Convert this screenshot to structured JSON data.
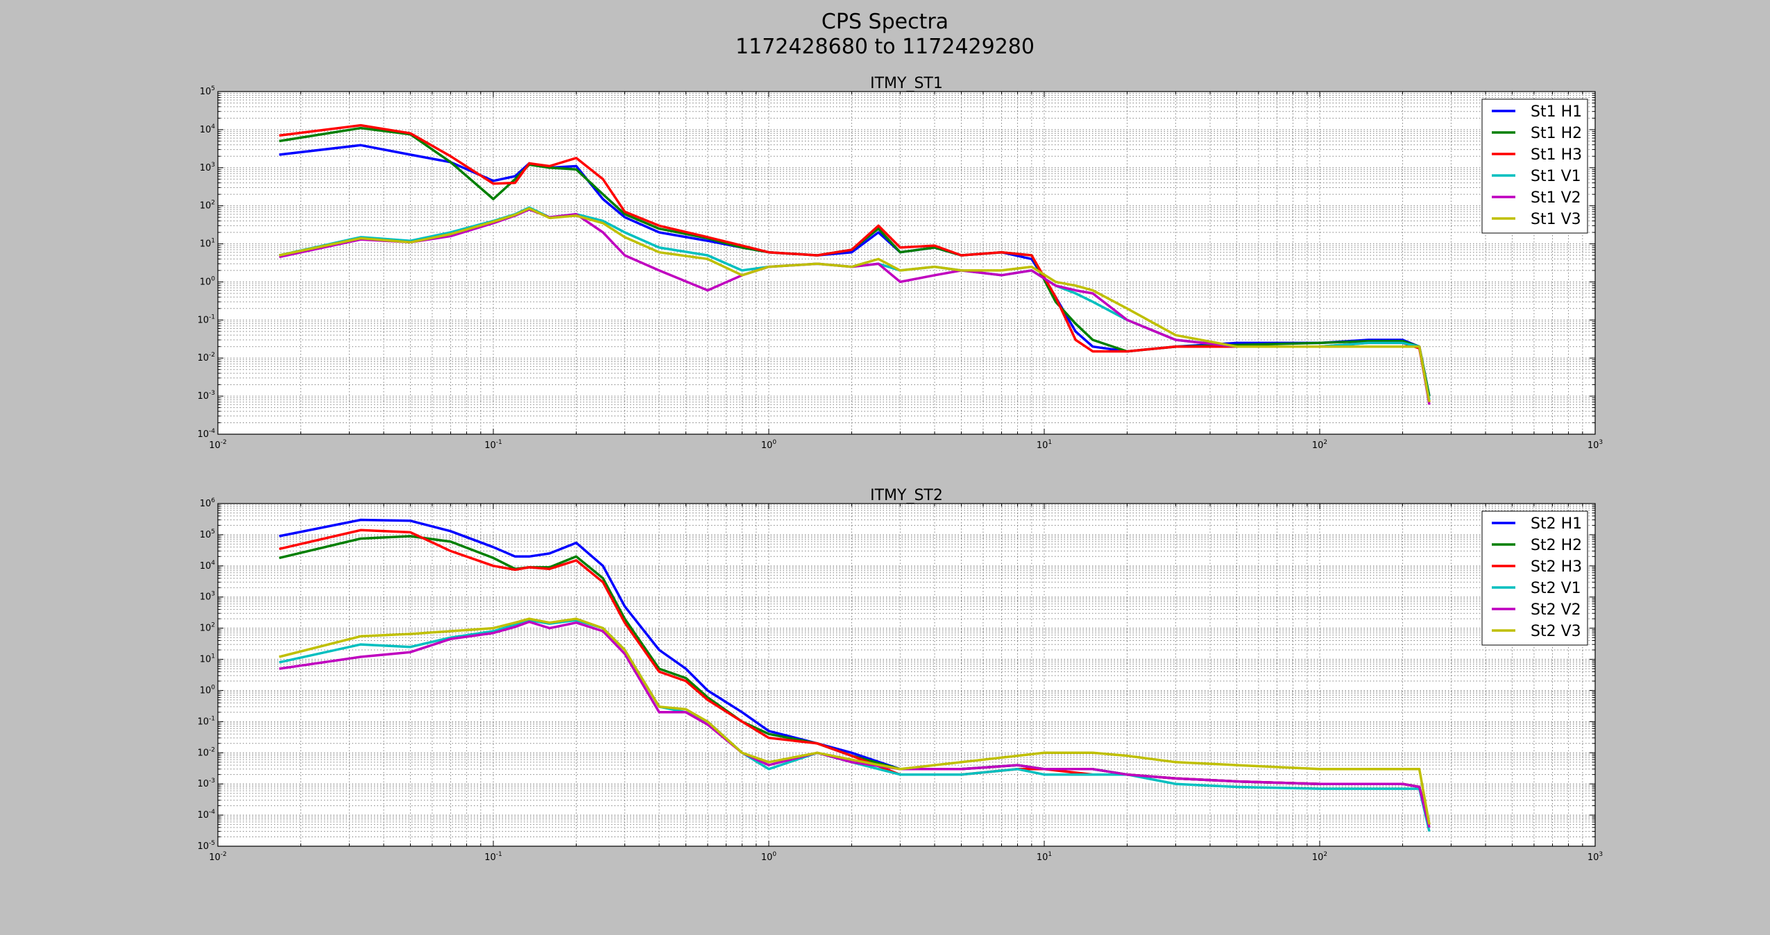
{
  "figure": {
    "title_line1": "CPS Spectra",
    "title_line2": "1172428680 to 1172429280"
  },
  "chart_data": [
    {
      "type": "line",
      "title": "ITMY_ST1",
      "xscale": "log",
      "yscale": "log",
      "xlim": [
        0.01,
        1000
      ],
      "ylim": [
        0.0001,
        100000
      ],
      "xlabel": "",
      "ylabel": "",
      "grid": true,
      "legend_position": "top-right",
      "xticks": [
        {
          "base": "10",
          "exp": "-2"
        },
        {
          "base": "10",
          "exp": "-1"
        },
        {
          "base": "10",
          "exp": "0"
        },
        {
          "base": "10",
          "exp": "1"
        },
        {
          "base": "10",
          "exp": "2"
        },
        {
          "base": "10",
          "exp": "3"
        }
      ],
      "yticks": [
        {
          "base": "10",
          "exp": "-4"
        },
        {
          "base": "10",
          "exp": "-3"
        },
        {
          "base": "10",
          "exp": "-2"
        },
        {
          "base": "10",
          "exp": "-1"
        },
        {
          "base": "10",
          "exp": "0"
        },
        {
          "base": "10",
          "exp": "1"
        },
        {
          "base": "10",
          "exp": "2"
        },
        {
          "base": "10",
          "exp": "3"
        },
        {
          "base": "10",
          "exp": "4"
        },
        {
          "base": "10",
          "exp": "5"
        }
      ],
      "series": [
        {
          "name": "St1 H1",
          "color": "#0000ff",
          "x": [
            0.0167,
            0.033,
            0.05,
            0.07,
            0.1,
            0.12,
            0.135,
            0.16,
            0.2,
            0.25,
            0.3,
            0.4,
            0.6,
            0.8,
            1,
            1.5,
            2,
            2.5,
            3,
            4,
            5,
            7,
            9,
            11,
            13,
            15,
            20,
            30,
            50,
            100,
            150,
            200,
            230,
            250
          ],
          "y": [
            2200,
            3900,
            2200,
            1400,
            450,
            600,
            1300,
            1000,
            1100,
            150,
            50,
            20,
            12,
            8,
            6,
            5,
            6,
            20,
            6,
            8,
            5,
            6,
            4,
            0.4,
            0.05,
            0.02,
            0.015,
            0.02,
            0.025,
            0.025,
            0.03,
            0.03,
            0.02,
            0.001
          ]
        },
        {
          "name": "St1 H2",
          "color": "#007f00",
          "x": [
            0.0167,
            0.033,
            0.05,
            0.07,
            0.1,
            0.12,
            0.135,
            0.16,
            0.2,
            0.25,
            0.3,
            0.4,
            0.6,
            0.8,
            1,
            1.5,
            2,
            2.5,
            3,
            4,
            5,
            7,
            9,
            11,
            13,
            15,
            20,
            30,
            50,
            100,
            150,
            200,
            230,
            250
          ],
          "y": [
            5000,
            11000,
            7500,
            1400,
            150,
            500,
            1200,
            1000,
            900,
            200,
            60,
            25,
            14,
            8,
            6,
            5,
            7,
            25,
            6,
            8,
            5,
            6,
            5,
            0.3,
            0.08,
            0.03,
            0.015,
            0.02,
            0.022,
            0.025,
            0.028,
            0.028,
            0.02,
            0.001
          ]
        },
        {
          "name": "St1 H3",
          "color": "#ff0000",
          "x": [
            0.0167,
            0.033,
            0.05,
            0.07,
            0.1,
            0.12,
            0.135,
            0.16,
            0.2,
            0.25,
            0.3,
            0.4,
            0.6,
            0.8,
            1,
            1.5,
            2,
            2.5,
            3,
            4,
            5,
            7,
            9,
            11,
            13,
            15,
            20,
            30,
            50,
            100,
            150,
            200,
            230,
            250
          ],
          "y": [
            7000,
            13000,
            8000,
            2000,
            380,
            400,
            1300,
            1100,
            1800,
            500,
            70,
            30,
            15,
            9,
            6,
            5,
            7,
            30,
            8,
            9,
            5,
            6,
            5,
            0.4,
            0.03,
            0.015,
            0.015,
            0.02,
            0.02,
            0.02,
            0.025,
            0.025,
            0.018,
            0.0007
          ]
        },
        {
          "name": "St1 V1",
          "color": "#00bfbf",
          "x": [
            0.0167,
            0.033,
            0.05,
            0.07,
            0.1,
            0.12,
            0.135,
            0.16,
            0.2,
            0.25,
            0.3,
            0.4,
            0.6,
            0.8,
            1,
            1.5,
            2,
            2.5,
            3,
            4,
            5,
            7,
            9,
            11,
            13,
            15,
            20,
            30,
            50,
            100,
            150,
            200,
            230,
            250
          ],
          "y": [
            5,
            15,
            12,
            20,
            40,
            60,
            90,
            50,
            60,
            40,
            20,
            8,
            5,
            2,
            2.5,
            3,
            2.5,
            3,
            2,
            2.5,
            2,
            1.5,
            2,
            0.8,
            0.5,
            0.3,
            0.1,
            0.03,
            0.02,
            0.02,
            0.025,
            0.025,
            0.02,
            0.0008
          ]
        },
        {
          "name": "St1 V2",
          "color": "#bf00bf",
          "x": [
            0.0167,
            0.033,
            0.05,
            0.07,
            0.1,
            0.12,
            0.135,
            0.16,
            0.2,
            0.25,
            0.3,
            0.4,
            0.6,
            0.8,
            1,
            1.5,
            2,
            2.5,
            3,
            4,
            5,
            7,
            9,
            11,
            13,
            15,
            20,
            30,
            50,
            100,
            150,
            200,
            230,
            250
          ],
          "y": [
            4.5,
            13,
            11,
            16,
            35,
            55,
            80,
            50,
            60,
            20,
            5,
            2,
            0.6,
            1.5,
            2.5,
            3,
            2.5,
            3,
            1,
            1.5,
            2,
            1.5,
            2,
            0.8,
            0.6,
            0.5,
            0.1,
            0.03,
            0.02,
            0.02,
            0.02,
            0.02,
            0.02,
            0.0006
          ]
        },
        {
          "name": "St1 V3",
          "color": "#bfbf00",
          "x": [
            0.0167,
            0.033,
            0.05,
            0.07,
            0.1,
            0.12,
            0.135,
            0.16,
            0.2,
            0.25,
            0.3,
            0.4,
            0.6,
            0.8,
            1,
            1.5,
            2,
            2.5,
            3,
            4,
            5,
            7,
            9,
            11,
            13,
            15,
            20,
            30,
            50,
            100,
            150,
            200,
            230,
            250
          ],
          "y": [
            5,
            14,
            11,
            18,
            38,
            58,
            85,
            48,
            55,
            35,
            15,
            6,
            4,
            1.5,
            2.5,
            3,
            2.5,
            4,
            2,
            2.5,
            2,
            2,
            2.5,
            1,
            0.8,
            0.6,
            0.2,
            0.04,
            0.02,
            0.02,
            0.02,
            0.02,
            0.02,
            0.0007
          ]
        }
      ]
    },
    {
      "type": "line",
      "title": "ITMY_ST2",
      "xscale": "log",
      "yscale": "log",
      "xlim": [
        0.01,
        1000
      ],
      "ylim": [
        1e-05,
        1000000
      ],
      "xlabel": "",
      "ylabel": "",
      "grid": true,
      "legend_position": "top-right",
      "xticks": [
        {
          "base": "10",
          "exp": "-2"
        },
        {
          "base": "10",
          "exp": "-1"
        },
        {
          "base": "10",
          "exp": "0"
        },
        {
          "base": "10",
          "exp": "1"
        },
        {
          "base": "10",
          "exp": "2"
        },
        {
          "base": "10",
          "exp": "3"
        }
      ],
      "yticks": [
        {
          "base": "10",
          "exp": "-5"
        },
        {
          "base": "10",
          "exp": "-4"
        },
        {
          "base": "10",
          "exp": "-3"
        },
        {
          "base": "10",
          "exp": "-2"
        },
        {
          "base": "10",
          "exp": "-1"
        },
        {
          "base": "10",
          "exp": "0"
        },
        {
          "base": "10",
          "exp": "1"
        },
        {
          "base": "10",
          "exp": "2"
        },
        {
          "base": "10",
          "exp": "3"
        },
        {
          "base": "10",
          "exp": "4"
        },
        {
          "base": "10",
          "exp": "5"
        },
        {
          "base": "10",
          "exp": "6"
        }
      ],
      "series": [
        {
          "name": "St2 H1",
          "color": "#0000ff",
          "x": [
            0.0167,
            0.033,
            0.05,
            0.07,
            0.1,
            0.12,
            0.135,
            0.16,
            0.2,
            0.25,
            0.3,
            0.4,
            0.5,
            0.6,
            0.8,
            1,
            1.5,
            2,
            3,
            5,
            8,
            10,
            15,
            20,
            30,
            50,
            100,
            150,
            200,
            230,
            250
          ],
          "y": [
            90000,
            300000,
            280000,
            130000,
            40000,
            20000,
            20000,
            25000,
            55000,
            10000,
            500,
            20,
            5,
            1,
            0.2,
            0.05,
            0.02,
            0.01,
            0.003,
            0.003,
            0.004,
            0.003,
            0.003,
            0.002,
            0.0015,
            0.0012,
            0.001,
            0.001,
            0.001,
            0.0008,
            5e-05
          ]
        },
        {
          "name": "St2 H2",
          "color": "#007f00",
          "x": [
            0.0167,
            0.033,
            0.05,
            0.07,
            0.1,
            0.12,
            0.135,
            0.16,
            0.2,
            0.25,
            0.3,
            0.4,
            0.5,
            0.6,
            0.8,
            1,
            1.5,
            2,
            3,
            5,
            8,
            10,
            15,
            20,
            30,
            50,
            100,
            150,
            200,
            230,
            250
          ],
          "y": [
            18000,
            75000,
            90000,
            60000,
            18000,
            8000,
            9000,
            9000,
            20000,
            4000,
            200,
            5,
            2.5,
            0.6,
            0.1,
            0.04,
            0.02,
            0.008,
            0.003,
            0.003,
            0.004,
            0.003,
            0.003,
            0.002,
            0.0015,
            0.0012,
            0.001,
            0.001,
            0.001,
            0.0008,
            5e-05
          ]
        },
        {
          "name": "St2 H3",
          "color": "#ff0000",
          "x": [
            0.0167,
            0.033,
            0.05,
            0.07,
            0.1,
            0.12,
            0.135,
            0.16,
            0.2,
            0.25,
            0.3,
            0.4,
            0.5,
            0.6,
            0.8,
            1,
            1.5,
            2,
            3,
            5,
            8,
            10,
            15,
            20,
            30,
            50,
            100,
            150,
            200,
            230,
            250
          ],
          "y": [
            35000,
            140000,
            120000,
            30000,
            10000,
            7500,
            9000,
            8000,
            15000,
            3000,
            150,
            4,
            2,
            0.5,
            0.1,
            0.03,
            0.02,
            0.008,
            0.002,
            0.002,
            0.003,
            0.003,
            0.002,
            0.002,
            0.0015,
            0.0012,
            0.001,
            0.001,
            0.001,
            0.0008,
            5e-05
          ]
        },
        {
          "name": "St2 V1",
          "color": "#00bfbf",
          "x": [
            0.0167,
            0.033,
            0.05,
            0.07,
            0.1,
            0.12,
            0.135,
            0.16,
            0.2,
            0.25,
            0.3,
            0.4,
            0.5,
            0.6,
            0.8,
            1,
            1.5,
            2,
            3,
            5,
            8,
            10,
            15,
            20,
            30,
            50,
            100,
            150,
            200,
            230,
            250
          ],
          "y": [
            8,
            30,
            25,
            50,
            80,
            130,
            180,
            140,
            180,
            100,
            20,
            0.3,
            0.2,
            0.1,
            0.01,
            0.003,
            0.01,
            0.005,
            0.002,
            0.002,
            0.003,
            0.002,
            0.002,
            0.002,
            0.001,
            0.0008,
            0.0007,
            0.0007,
            0.0007,
            0.0007,
            3e-05
          ]
        },
        {
          "name": "St2 V2",
          "color": "#bf00bf",
          "x": [
            0.0167,
            0.033,
            0.05,
            0.07,
            0.1,
            0.12,
            0.135,
            0.16,
            0.2,
            0.25,
            0.3,
            0.4,
            0.5,
            0.6,
            0.8,
            1,
            1.5,
            2,
            3,
            5,
            8,
            10,
            15,
            20,
            30,
            50,
            100,
            150,
            200,
            230,
            250
          ],
          "y": [
            5,
            12,
            17,
            45,
            70,
            110,
            160,
            100,
            150,
            80,
            15,
            0.2,
            0.2,
            0.08,
            0.01,
            0.004,
            0.01,
            0.005,
            0.003,
            0.003,
            0.004,
            0.003,
            0.003,
            0.002,
            0.0015,
            0.0012,
            0.001,
            0.001,
            0.001,
            0.0008,
            4e-05
          ]
        },
        {
          "name": "St2 V3",
          "color": "#bfbf00",
          "x": [
            0.0167,
            0.033,
            0.05,
            0.07,
            0.1,
            0.12,
            0.135,
            0.16,
            0.2,
            0.25,
            0.3,
            0.4,
            0.5,
            0.6,
            0.8,
            1,
            1.5,
            2,
            3,
            5,
            8,
            10,
            15,
            20,
            30,
            50,
            100,
            150,
            200,
            230,
            250
          ],
          "y": [
            12,
            55,
            65,
            80,
            100,
            150,
            200,
            150,
            200,
            100,
            20,
            0.3,
            0.25,
            0.1,
            0.01,
            0.005,
            0.01,
            0.006,
            0.003,
            0.005,
            0.008,
            0.01,
            0.01,
            0.008,
            0.005,
            0.004,
            0.003,
            0.003,
            0.003,
            0.003,
            5e-05
          ]
        }
      ]
    }
  ]
}
